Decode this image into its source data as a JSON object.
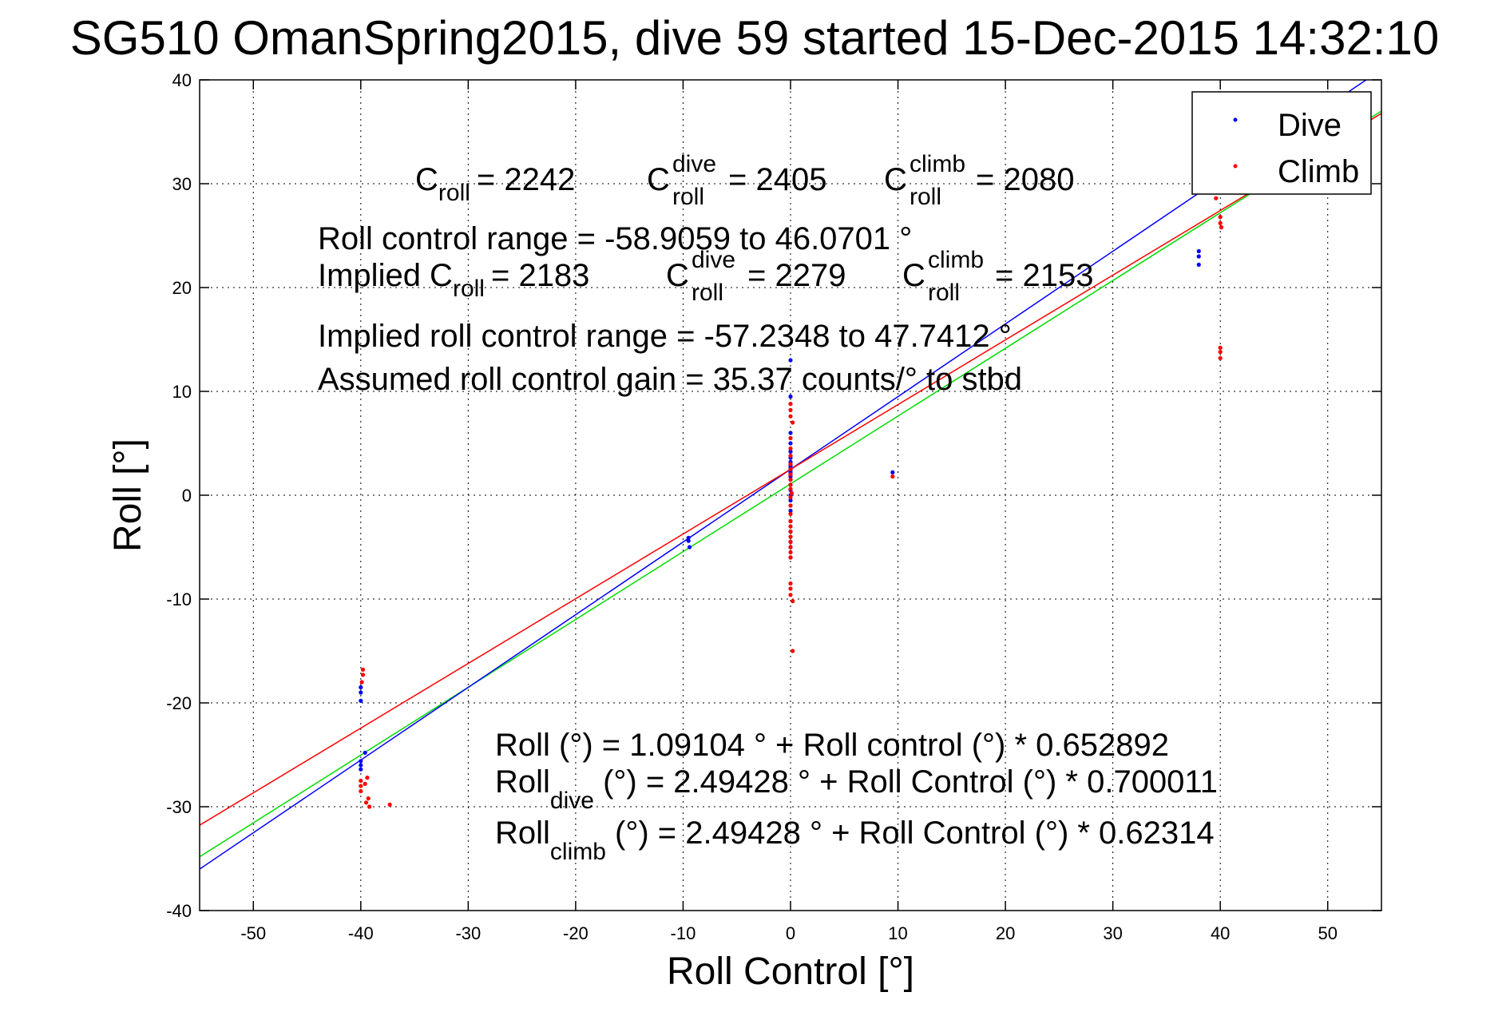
{
  "chart_data": {
    "type": "scatter",
    "title": "SG510 OmanSpring2015, dive 59 started 15-Dec-2015 14:32:10",
    "xlabel": "Roll Control [°]",
    "ylabel": "Roll [°]",
    "xlim": [
      -55,
      55
    ],
    "ylim": [
      -40,
      40
    ],
    "xticks": [
      "-50",
      "-40",
      "-30",
      "-20",
      "-10",
      "0",
      "10",
      "20",
      "30",
      "40",
      "50"
    ],
    "yticks": [
      "40",
      "30",
      "20",
      "10",
      "0",
      "-10",
      "-20",
      "-30",
      "-40"
    ],
    "grid": true,
    "legend_position": "top-right",
    "legend": [
      "Dive",
      "Climb"
    ],
    "series": [
      {
        "name": "Dive",
        "color": "#0000ff",
        "points": [
          [
            -40,
            -19.8
          ],
          [
            -40,
            -19.0
          ],
          [
            -40,
            -18.5
          ],
          [
            -40,
            -26.0
          ],
          [
            -40,
            -25.6
          ],
          [
            -40,
            -26.4
          ],
          [
            -39.6,
            -24.8
          ],
          [
            -9.5,
            -4.1
          ],
          [
            -9.5,
            -4.4
          ],
          [
            -9.4,
            -5.0
          ],
          [
            0,
            13.0
          ],
          [
            0,
            9.5
          ],
          [
            0,
            6.0
          ],
          [
            0,
            5.0
          ],
          [
            0,
            4.2
          ],
          [
            0,
            3.6
          ],
          [
            0,
            3.2
          ],
          [
            0,
            3.0
          ],
          [
            0,
            2.8
          ],
          [
            0,
            2.6
          ],
          [
            0,
            2.4
          ],
          [
            0,
            2.2
          ],
          [
            0,
            2.0
          ],
          [
            0,
            1.8
          ],
          [
            0,
            1.5
          ],
          [
            0,
            1.0
          ],
          [
            0,
            0.5
          ],
          [
            0,
            0.0
          ],
          [
            0,
            -0.5
          ],
          [
            0,
            -1.5
          ],
          [
            0,
            -2.5
          ],
          [
            0,
            -3.5
          ],
          [
            0,
            -4.5
          ],
          [
            0,
            -5.0
          ],
          [
            0,
            -6.0
          ],
          [
            9.5,
            2.2
          ],
          [
            38,
            23.5
          ],
          [
            38,
            23.0
          ],
          [
            38,
            22.2
          ],
          [
            39.7,
            30.2
          ]
        ]
      },
      {
        "name": "Climb",
        "color": "#ff0000",
        "points": [
          [
            -39.8,
            -16.8
          ],
          [
            -39.8,
            -17.3
          ],
          [
            -39.9,
            -18.0
          ],
          [
            -40,
            -27.5
          ],
          [
            -40,
            -28.0
          ],
          [
            -40,
            -28.5
          ],
          [
            -39.6,
            -27.8
          ],
          [
            -39.4,
            -27.2
          ],
          [
            -39.3,
            -29.2
          ],
          [
            -39.2,
            -30.0
          ],
          [
            -39.5,
            -29.6
          ],
          [
            -37.3,
            -29.8
          ],
          [
            0,
            8.8
          ],
          [
            0,
            8.2
          ],
          [
            0,
            7.6
          ],
          [
            0.2,
            7.0
          ],
          [
            0,
            5.5
          ],
          [
            0,
            4.5
          ],
          [
            0,
            3.8
          ],
          [
            0,
            3.0
          ],
          [
            0,
            2.5
          ],
          [
            0,
            2.0
          ],
          [
            0,
            1.5
          ],
          [
            0,
            1.0
          ],
          [
            0,
            0.6
          ],
          [
            0.1,
            0.2
          ],
          [
            0,
            -0.2
          ],
          [
            0,
            -1.0
          ],
          [
            0,
            -1.8
          ],
          [
            0,
            -2.5
          ],
          [
            0,
            -3.0
          ],
          [
            0,
            -3.5
          ],
          [
            0,
            -4.0
          ],
          [
            0,
            -4.5
          ],
          [
            0,
            -5.0
          ],
          [
            0,
            -5.5
          ],
          [
            0,
            -6.0
          ],
          [
            0,
            -8.5
          ],
          [
            0,
            -9.0
          ],
          [
            0,
            -9.6
          ],
          [
            0.2,
            -10.2
          ],
          [
            0.2,
            -15.0
          ],
          [
            9.5,
            1.8
          ],
          [
            39.6,
            28.6
          ],
          [
            40,
            26.8
          ],
          [
            40,
            26.2
          ],
          [
            40.1,
            25.8
          ],
          [
            40,
            14.2
          ],
          [
            40,
            13.8
          ],
          [
            40,
            13.2
          ]
        ]
      }
    ],
    "fit_lines": [
      {
        "name": "overall",
        "color": "#00dd00",
        "intercept": 1.09104,
        "slope": 0.652892
      },
      {
        "name": "dive",
        "color": "#0000ff",
        "intercept": 2.49428,
        "slope": 0.700011
      },
      {
        "name": "climb",
        "color": "#ff0000",
        "intercept": 2.49428,
        "slope": 0.62314
      }
    ]
  },
  "annotations": {
    "c_line": {
      "a_base": "C",
      "a_sub": "roll",
      "a_val": "= 2242",
      "b_base": "C",
      "b_sup": "dive",
      "b_sub": "roll",
      "b_val": "= 2405",
      "c_base": "C",
      "c_sup": "climb",
      "c_sub": "roll",
      "c_val": "= 2080"
    },
    "range_line": "Roll control range = -58.9059 to 46.0701 °",
    "implied_line": {
      "prefix": "Implied C",
      "a_sub": "roll",
      "a_val": "= 2183",
      "b_base": "C",
      "b_sup": "dive",
      "b_sub": "roll",
      "b_val": "= 2279",
      "c_base": "C",
      "c_sup": "climb",
      "c_sub": "roll",
      "c_val": "= 2153"
    },
    "implied_range_line": "Implied roll control range = -57.2348 to 47.7412 °",
    "gain_line": "Assumed roll control gain = 35.37 counts/° to stbd",
    "eq_overall": "Roll (°) = 1.09104 ° + Roll control (°) * 0.652892",
    "eq_dive": {
      "base": "Roll",
      "sub": "dive",
      "rest": " (°) = 2.49428 ° + Roll Control (°) * 0.700011"
    },
    "eq_climb": {
      "base": "Roll",
      "sub": "climb",
      "rest": " (°) = 2.49428 ° + Roll Control (°) * 0.62314"
    }
  }
}
